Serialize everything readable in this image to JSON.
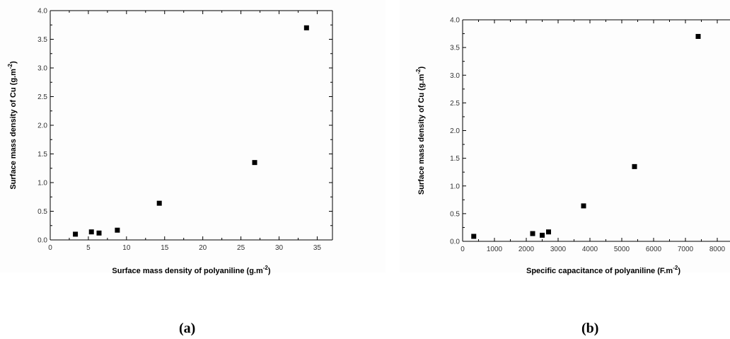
{
  "chart_data": [
    {
      "type": "scatter",
      "panel_label": "(a)",
      "xlabel": "Surface mass density of polyaniline (g.m",
      "xlabel_sup": "-2",
      "xlabel_end": ")",
      "ylabel": "Surface mass density of Cu (g.m",
      "ylabel_sup": "-2",
      "ylabel_end": ")",
      "xlim": [
        0,
        37
      ],
      "ylim": [
        0,
        4.0
      ],
      "xticks": [
        0,
        5,
        10,
        15,
        20,
        25,
        30,
        35
      ],
      "yticks": [
        0.0,
        0.5,
        1.0,
        1.5,
        2.0,
        2.5,
        3.0,
        3.5,
        4.0
      ],
      "grid": false,
      "marker_color": "#000000",
      "x": [
        3.3,
        5.4,
        6.4,
        8.8,
        14.3,
        26.8,
        33.6
      ],
      "y": [
        0.1,
        0.14,
        0.12,
        0.17,
        0.64,
        1.35,
        3.7
      ]
    },
    {
      "type": "scatter",
      "panel_label": "(b)",
      "xlabel": "Specific capacitance of polyaniline (F.m",
      "xlabel_sup": "-2",
      "xlabel_end": ")",
      "ylabel": "Surface mass density of Cu (g.m",
      "ylabel_sup": "-2",
      "ylabel_end": ")",
      "xlim": [
        0,
        8400
      ],
      "ylim": [
        0,
        4.0
      ],
      "xticks": [
        0,
        1000,
        2000,
        3000,
        4000,
        5000,
        6000,
        7000,
        8000
      ],
      "yticks": [
        0.0,
        0.5,
        1.0,
        1.5,
        2.0,
        2.5,
        3.0,
        3.5,
        4.0
      ],
      "grid": false,
      "marker_color": "#000000",
      "x": [
        350,
        2200,
        2500,
        2700,
        3800,
        5400,
        7400
      ],
      "y": [
        0.09,
        0.14,
        0.11,
        0.17,
        0.64,
        1.35,
        3.7
      ]
    }
  ]
}
